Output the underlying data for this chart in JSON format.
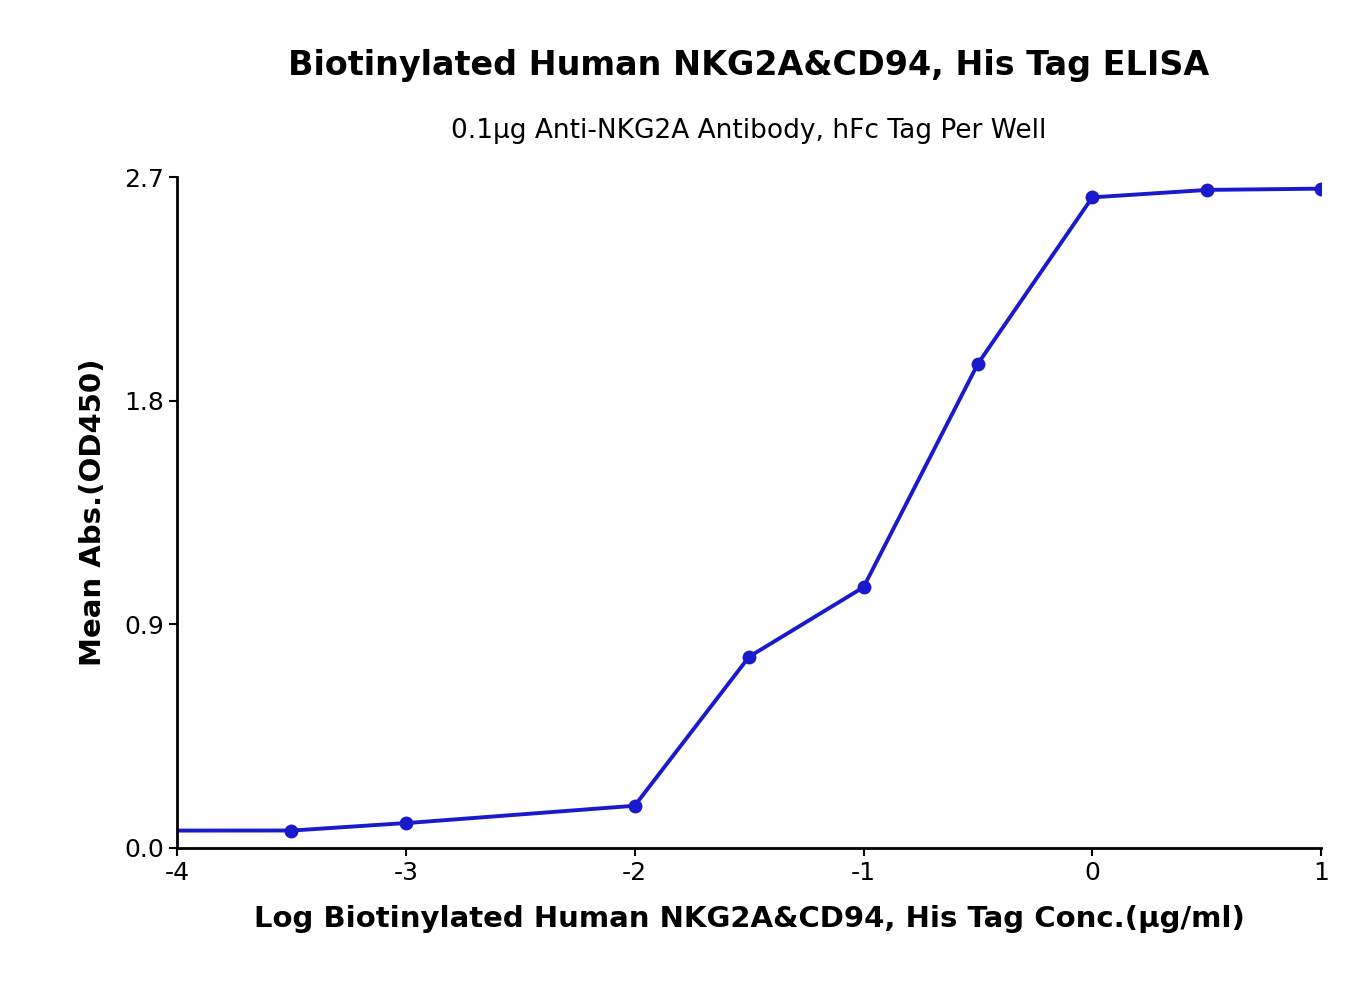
{
  "title": "Biotinylated Human NKG2A&CD94, His Tag ELISA",
  "subtitle": "0.1μg Anti-NKG2A Antibody, hFc Tag Per Well",
  "xlabel": "Log Biotinylated Human NKG2A&CD94, His Tag Conc.(μg/ml)",
  "ylabel": "Mean Abs.(OD450)",
  "data_x": [
    -3.5,
    -3.0,
    -2.0,
    -1.5,
    -1.0,
    -0.5,
    0.0,
    0.5,
    1.0
  ],
  "data_y": [
    0.07,
    0.1,
    0.17,
    0.77,
    1.05,
    1.95,
    2.62,
    2.65,
    2.655
  ],
  "xlim": [
    -4,
    1
  ],
  "ylim": [
    0.0,
    2.7
  ],
  "xticks": [
    -4,
    -3,
    -2,
    -1,
    0,
    1
  ],
  "yticks": [
    0.0,
    0.9,
    1.8,
    2.7
  ],
  "curve_color": "#1a1acd",
  "marker_color": "#1a1acd",
  "title_fontsize": 24,
  "subtitle_fontsize": 19,
  "label_fontsize": 21,
  "tick_fontsize": 18,
  "background_color": "#ffffff"
}
